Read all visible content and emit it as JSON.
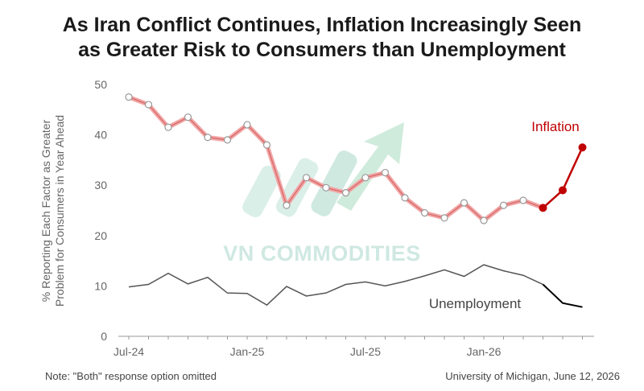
{
  "title_line1": "As Iran Conflict Continues, Inflation Increasingly Seen",
  "title_line2": "as Greater Risk to Consumers than Unemployment",
  "note": "Note: \"Both\" response option omitted",
  "source": "University of Michigan, June 12, 2026",
  "watermark": "VN COMMODITIES",
  "colors": {
    "inflation": "#c00000",
    "inflation_halo": "#f2a6a6",
    "unemployment": "#333333",
    "axis": "#999999",
    "watermark": "#cfe8e2"
  },
  "chart_data": {
    "type": "line",
    "title": "As Iran Conflict Continues, Inflation Increasingly Seen as Greater Risk to Consumers than Unemployment",
    "ylabel_line1": "% Reporting Each Factor as Greater",
    "ylabel_line2": "Problem for Consumers in Year Ahead",
    "xlabel": "",
    "ylim": [
      0,
      50
    ],
    "yticks": [
      0,
      10,
      20,
      30,
      40,
      50
    ],
    "xticks": [
      "Jul-24",
      "Jan-25",
      "Jul-25",
      "Jan-26"
    ],
    "x": [
      "Jul-24",
      "Aug-24",
      "Sep-24",
      "Oct-24",
      "Nov-24",
      "Dec-24",
      "Jan-25",
      "Feb-25",
      "Mar-25",
      "Apr-25",
      "May-25",
      "Jun-25",
      "Jul-25",
      "Aug-25",
      "Sep-25",
      "Oct-25",
      "Nov-25",
      "Dec-25",
      "Jan-26",
      "Feb-26",
      "Mar-26",
      "Apr-26",
      "May-26",
      "Jun-26"
    ],
    "series": [
      {
        "name": "Inflation",
        "values": [
          47.5,
          46,
          41.5,
          43.5,
          39.5,
          39,
          42,
          38,
          26,
          31.5,
          29.5,
          28.5,
          31.5,
          32.5,
          27.5,
          24.5,
          23.5,
          26.5,
          23,
          26,
          27,
          25.5,
          29,
          37.5
        ]
      },
      {
        "name": "Unemployment",
        "values": [
          9.8,
          10.3,
          12.5,
          10.4,
          11.7,
          8.6,
          8.5,
          6.2,
          9.9,
          8.0,
          8.6,
          10.3,
          10.8,
          10.0,
          10.9,
          12.0,
          13.2,
          11.9,
          14.2,
          13.0,
          12.1,
          10.3,
          6.6,
          5.8
        ]
      }
    ],
    "series_labels": {
      "inflation": "Inflation",
      "unemployment": "Unemployment"
    },
    "grid": false,
    "legend": "inline labels"
  }
}
